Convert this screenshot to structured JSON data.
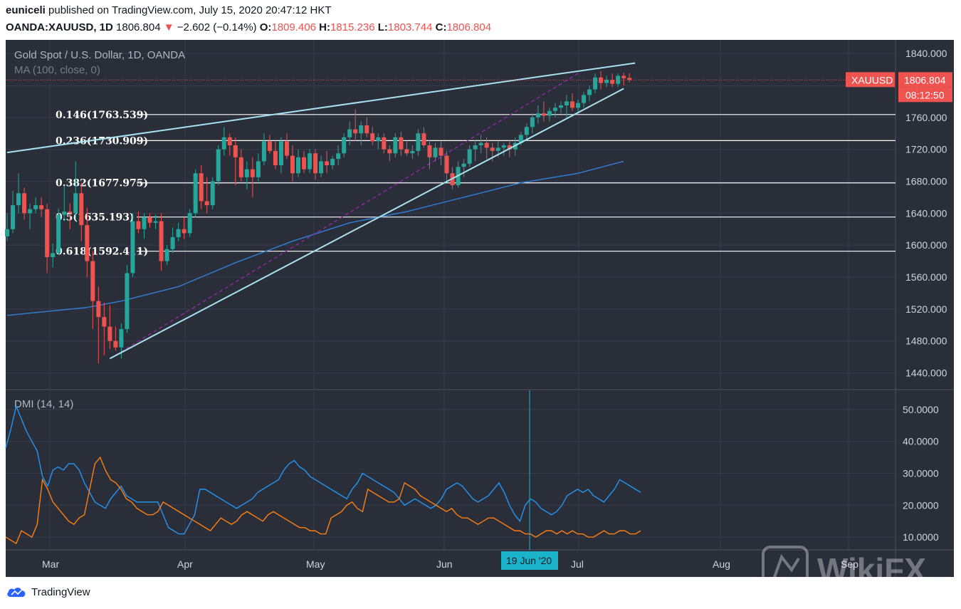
{
  "header": {
    "author": "euniceli",
    "published_text": "published on TradingView.com, July 15, 2020 20:47:12 HKT",
    "symbol": "OANDA:XAUUSD, 1D",
    "last": "1806.804",
    "change": "−2.602 (−0.14%)",
    "o_label": "O:",
    "o_value": "1809.406",
    "h_label": "H:",
    "h_value": "1815.236",
    "l_label": "L:",
    "l_value": "1803.744",
    "c_label": "C:",
    "c_value": "1806.804"
  },
  "legend": {
    "title": "Gold Spot / U.S. Dollar, 1D, OANDA",
    "ma": "MA (100, close, 0)",
    "dmi": "DMI (14, 14)"
  },
  "price_tag": {
    "symbol": "XAUUSD",
    "price": "1806.804",
    "countdown": "08:12:50"
  },
  "crosshair_label": "19 Jun '20",
  "footer": {
    "brand": "TradingView",
    "watermark": "WikiFX"
  },
  "colors": {
    "background": "#2a2e39",
    "grid": "#363c4e",
    "up": "#26a69a",
    "down": "#ef5350",
    "trend": "#a7e3ef",
    "ma": "#2f7fd6",
    "fib": "#ffffff",
    "di_plus": "#2196f3",
    "di_minus": "#ff7f0e",
    "purple_dash": "#9c27b0",
    "crosshair": "#1ab3c9"
  },
  "chart_data": [
    {
      "type": "candlestick",
      "title": "Gold Spot / U.S. Dollar, 1D, OANDA",
      "x_ticks": [
        "Mar",
        "Apr",
        "May",
        "Jun",
        "Jul",
        "Aug",
        "Sep"
      ],
      "y_ticks": [
        "1840.000",
        "1800.000",
        "1760.000",
        "1720.000",
        "1680.000",
        "1640.000",
        "1600.000",
        "1560.000",
        "1520.000",
        "1480.000",
        "1440.000"
      ],
      "ylim": [
        1420,
        1857
      ],
      "ohlc": [
        [
          1611,
          1640,
          1605,
          1620
        ],
        [
          1620,
          1668,
          1615,
          1650
        ],
        [
          1650,
          1690,
          1640,
          1665
        ],
        [
          1665,
          1672,
          1632,
          1640
        ],
        [
          1640,
          1652,
          1620,
          1645
        ],
        [
          1645,
          1660,
          1640,
          1650
        ],
        [
          1650,
          1660,
          1635,
          1645
        ],
        [
          1645,
          1652,
          1565,
          1585
        ],
        [
          1585,
          1602,
          1572,
          1590
        ],
        [
          1590,
          1646,
          1588,
          1638
        ],
        [
          1638,
          1675,
          1630,
          1642
        ],
        [
          1642,
          1652,
          1620,
          1640
        ],
        [
          1640,
          1705,
          1632,
          1665
        ],
        [
          1665,
          1678,
          1605,
          1625
        ],
        [
          1625,
          1647,
          1560,
          1580
        ],
        [
          1580,
          1592,
          1495,
          1530
        ],
        [
          1530,
          1548,
          1452,
          1510
        ],
        [
          1510,
          1528,
          1462,
          1498
        ],
        [
          1498,
          1525,
          1470,
          1480
        ],
        [
          1480,
          1498,
          1468,
          1472
        ],
        [
          1472,
          1502,
          1458,
          1495
        ],
        [
          1495,
          1575,
          1490,
          1565
        ],
        [
          1565,
          1640,
          1560,
          1630
        ],
        [
          1630,
          1642,
          1615,
          1620
        ],
        [
          1620,
          1640,
          1608,
          1635
        ],
        [
          1635,
          1640,
          1622,
          1628
        ],
        [
          1628,
          1638,
          1620,
          1630
        ],
        [
          1630,
          1640,
          1568,
          1580
        ],
        [
          1580,
          1600,
          1575,
          1595
        ],
        [
          1595,
          1622,
          1590,
          1610
        ],
        [
          1610,
          1628,
          1605,
          1620
        ],
        [
          1620,
          1635,
          1608,
          1615
        ],
        [
          1615,
          1645,
          1610,
          1640
        ],
        [
          1640,
          1695,
          1635,
          1690
        ],
        [
          1690,
          1700,
          1645,
          1655
        ],
        [
          1655,
          1685,
          1640,
          1650
        ],
        [
          1650,
          1685,
          1645,
          1680
        ],
        [
          1680,
          1725,
          1675,
          1720
        ],
        [
          1720,
          1748,
          1712,
          1735
        ],
        [
          1735,
          1740,
          1712,
          1725
        ],
        [
          1725,
          1735,
          1675,
          1710
        ],
        [
          1710,
          1720,
          1680,
          1685
        ],
        [
          1685,
          1705,
          1670,
          1695
        ],
        [
          1695,
          1710,
          1660,
          1685
        ],
        [
          1685,
          1715,
          1680,
          1705
        ],
        [
          1705,
          1740,
          1700,
          1730
        ],
        [
          1730,
          1738,
          1715,
          1718
        ],
        [
          1718,
          1730,
          1695,
          1700
        ],
        [
          1700,
          1735,
          1690,
          1730
        ],
        [
          1730,
          1740,
          1708,
          1712
        ],
        [
          1712,
          1725,
          1680,
          1690
        ],
        [
          1690,
          1720,
          1685,
          1710
        ],
        [
          1710,
          1718,
          1690,
          1695
        ],
        [
          1695,
          1720,
          1690,
          1715
        ],
        [
          1715,
          1720,
          1682,
          1690
        ],
        [
          1690,
          1712,
          1685,
          1705
        ],
        [
          1705,
          1718,
          1690,
          1700
        ],
        [
          1700,
          1712,
          1695,
          1708
        ],
        [
          1708,
          1725,
          1700,
          1715
        ],
        [
          1715,
          1740,
          1710,
          1735
        ],
        [
          1735,
          1755,
          1725,
          1745
        ],
        [
          1745,
          1770,
          1730,
          1740
        ],
        [
          1740,
          1755,
          1725,
          1750
        ],
        [
          1750,
          1760,
          1735,
          1740
        ],
        [
          1740,
          1748,
          1725,
          1730
        ],
        [
          1730,
          1740,
          1720,
          1735
        ],
        [
          1735,
          1740,
          1715,
          1720
        ],
        [
          1720,
          1725,
          1705,
          1715
        ],
        [
          1715,
          1740,
          1710,
          1735
        ],
        [
          1735,
          1742,
          1712,
          1720
        ],
        [
          1720,
          1730,
          1712,
          1715
        ],
        [
          1715,
          1725,
          1708,
          1718
        ],
        [
          1718,
          1745,
          1712,
          1740
        ],
        [
          1740,
          1748,
          1722,
          1725
        ],
        [
          1725,
          1732,
          1695,
          1710
        ],
        [
          1710,
          1728,
          1705,
          1722
        ],
        [
          1722,
          1730,
          1700,
          1712
        ],
        [
          1712,
          1718,
          1680,
          1690
        ],
        [
          1690,
          1698,
          1670,
          1675
        ],
        [
          1675,
          1705,
          1672,
          1698
        ],
        [
          1698,
          1708,
          1685,
          1702
        ],
        [
          1702,
          1725,
          1698,
          1720
        ],
        [
          1720,
          1732,
          1705,
          1725
        ],
        [
          1725,
          1738,
          1715,
          1728
        ],
        [
          1728,
          1735,
          1708,
          1722
        ],
        [
          1722,
          1728,
          1705,
          1718
        ],
        [
          1718,
          1730,
          1710,
          1722
        ],
        [
          1722,
          1728,
          1712,
          1725
        ],
        [
          1725,
          1732,
          1710,
          1720
        ],
        [
          1720,
          1735,
          1712,
          1728
        ],
        [
          1728,
          1742,
          1725,
          1738
        ],
        [
          1738,
          1752,
          1730,
          1748
        ],
        [
          1748,
          1765,
          1740,
          1760
        ],
        [
          1760,
          1775,
          1752,
          1765
        ],
        [
          1765,
          1780,
          1755,
          1762
        ],
        [
          1762,
          1772,
          1755,
          1768
        ],
        [
          1768,
          1778,
          1760,
          1772
        ],
        [
          1772,
          1780,
          1765,
          1775
        ],
        [
          1775,
          1788,
          1760,
          1780
        ],
        [
          1780,
          1790,
          1768,
          1772
        ],
        [
          1772,
          1782,
          1765,
          1778
        ],
        [
          1778,
          1792,
          1772,
          1788
        ],
        [
          1788,
          1800,
          1780,
          1795
        ],
        [
          1795,
          1815,
          1790,
          1810
        ],
        [
          1810,
          1818,
          1795,
          1803
        ],
        [
          1803,
          1812,
          1798,
          1807
        ],
        [
          1807,
          1815,
          1798,
          1802
        ],
        [
          1802,
          1815,
          1798,
          1812
        ],
        [
          1812,
          1816,
          1800,
          1809
        ],
        [
          1809.406,
          1815.236,
          1803.744,
          1806.804
        ]
      ],
      "last_price": 1806.804,
      "series": [
        {
          "name": "MA (100, close, 0)",
          "x_index": [
            0,
            14,
            20,
            30,
            40,
            50,
            60,
            70,
            80,
            90,
            100,
            108
          ],
          "values": [
            1512,
            1522,
            1530,
            1548,
            1578,
            1605,
            1628,
            1642,
            1660,
            1678,
            1690,
            1705
          ]
        }
      ],
      "fibonacci_levels": [
        {
          "label": "0.146(1763.539)",
          "value": 1763.539
        },
        {
          "label": "0.236(1730.909)",
          "value": 1730.909
        },
        {
          "label": "0.382(1677.975)",
          "value": 1677.975
        },
        {
          "label": "0.5(1635.193)",
          "value": 1635.193
        },
        {
          "label": "0.618(1592.411)",
          "value": 1592.411
        }
      ],
      "trend_lines": [
        {
          "from": [
            0,
            1716
          ],
          "to": [
            110,
            1828
          ]
        },
        {
          "from": [
            18,
            1458
          ],
          "to": [
            108,
            1796
          ]
        }
      ],
      "dashed_line": {
        "from": [
          18,
          1458
        ],
        "to": [
          100,
          1815
        ]
      }
    },
    {
      "type": "line",
      "title": "DMI (14, 14)",
      "y_ticks": [
        "50.0000",
        "40.0000",
        "30.0000",
        "20.0000",
        "10.0000"
      ],
      "ylim": [
        6,
        56
      ],
      "series": [
        {
          "name": "+DI",
          "values": [
            38,
            44,
            51,
            47,
            43,
            40,
            37,
            29,
            26,
            31,
            32,
            31,
            33,
            33,
            31,
            27,
            24,
            21,
            20,
            19,
            22,
            24,
            26,
            23,
            22,
            21,
            21,
            21,
            21,
            21,
            17,
            13,
            12,
            11,
            11,
            14,
            17,
            25,
            25,
            24,
            23,
            22,
            21,
            20,
            19,
            20,
            21,
            22,
            24,
            25,
            26,
            27,
            28,
            31,
            33,
            34,
            32,
            31,
            29,
            28,
            27,
            26,
            25,
            24,
            23,
            22,
            25,
            27,
            30,
            29,
            28,
            27,
            26,
            25,
            24,
            22,
            20,
            21,
            22,
            21,
            20,
            19,
            20,
            22,
            25,
            26,
            27,
            26,
            24,
            22,
            21,
            22,
            23,
            25,
            27,
            24,
            20,
            17,
            15,
            20,
            22,
            21,
            19,
            18,
            17,
            18,
            20,
            23,
            24,
            25,
            24,
            25,
            23,
            22,
            21,
            23,
            25,
            28,
            27,
            26,
            25,
            24
          ]
        },
        {
          "name": "−DI",
          "values": [
            10,
            9,
            8,
            12,
            11,
            10,
            14,
            28,
            25,
            21,
            19,
            17,
            15,
            14,
            16,
            17,
            25,
            33,
            35,
            31,
            28,
            27,
            25,
            22,
            21,
            19,
            18,
            17,
            17,
            18,
            21,
            20,
            19,
            18,
            17,
            16,
            15,
            14,
            13,
            12,
            14,
            16,
            15,
            14,
            15,
            17,
            18,
            17,
            16,
            15,
            17,
            18,
            17,
            16,
            15,
            14,
            13,
            13,
            12,
            12,
            11,
            11,
            16,
            17,
            18,
            20,
            21,
            19,
            18,
            25,
            24,
            23,
            22,
            21,
            21,
            22,
            27,
            26,
            25,
            23,
            22,
            21,
            20,
            19,
            18,
            19,
            17,
            16,
            16,
            15,
            14,
            15,
            16,
            16,
            15,
            14,
            13,
            12,
            12,
            11,
            11,
            10,
            11,
            12,
            12,
            11,
            12,
            11,
            12,
            11,
            11,
            10,
            10,
            11,
            12,
            11,
            11,
            12,
            12,
            11,
            11,
            12
          ]
        }
      ],
      "crosshair_x_label": "19 Jun '20"
    }
  ]
}
